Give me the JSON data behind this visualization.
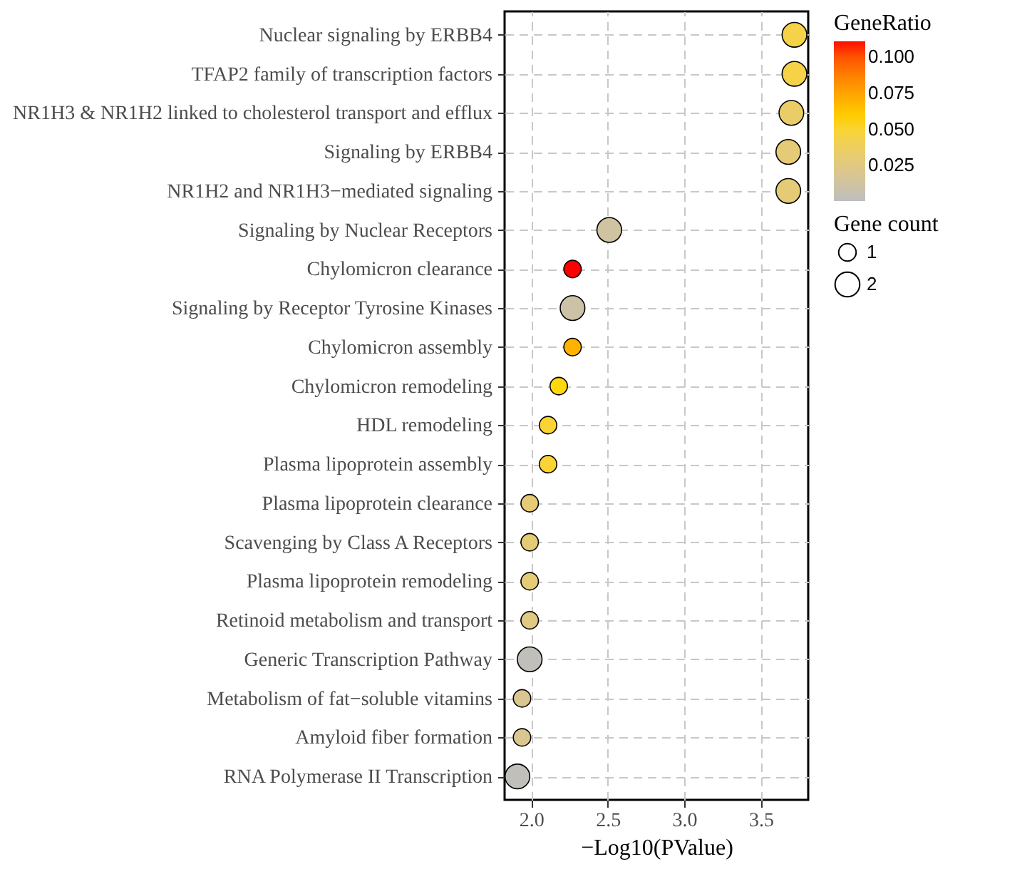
{
  "chart_data": {
    "type": "bubble",
    "orientation": "horizontal",
    "xlabel": "−Log10(PValue)",
    "grid": true,
    "categories": [
      "Nuclear signaling by ERBB4",
      "TFAP2 family of transcription factors",
      "NR1H3 & NR1H2 linked to cholesterol transport and efflux",
      "Signaling by ERBB4",
      "NR1H2 and NR1H3−mediated signaling",
      "Signaling by Nuclear Receptors",
      "Chylomicron clearance",
      "Signaling by Receptor Tyrosine Kinases",
      "Chylomicron assembly",
      "Chylomicron remodeling",
      "HDL remodeling",
      "Plasma lipoprotein assembly",
      "Plasma lipoprotein clearance",
      "Scavenging by Class A Receptors",
      "Plasma lipoprotein remodeling",
      "Retinoid metabolism and transport",
      "Generic Transcription Pathway",
      "Metabolism of fat−soluble vitamins",
      "Amyloid fiber formation",
      "RNA Polymerase II Transcription"
    ],
    "values": [
      3.72,
      3.72,
      3.7,
      3.68,
      3.68,
      2.51,
      2.27,
      2.27,
      2.27,
      2.18,
      2.11,
      2.11,
      1.99,
      1.99,
      1.99,
      1.99,
      1.99,
      1.94,
      1.94,
      1.91
    ],
    "sizes": [
      2,
      2,
      2,
      2,
      2,
      2,
      1,
      2,
      1,
      1,
      1,
      1,
      1,
      1,
      1,
      1,
      2,
      1,
      1,
      2
    ],
    "size_legend": [
      1,
      2
    ],
    "legend_title": "Gene count",
    "clabel": "GeneRatio",
    "cvalues": [
      0.045,
      0.045,
      0.035,
      0.03,
      0.03,
      0.012,
      0.111,
      0.01,
      0.07,
      0.055,
      0.05,
      0.05,
      0.03,
      0.03,
      0.03,
      0.025,
      0.002,
      0.02,
      0.02,
      0.002
    ],
    "clim": [
      0.0005,
      0.111
    ],
    "cticks": [
      {
        "value": 0.025,
        "label": "0.025"
      },
      {
        "value": 0.05,
        "label": "0.050"
      },
      {
        "value": 0.075,
        "label": "0.075"
      },
      {
        "value": 0.1,
        "label": "0.100"
      }
    ],
    "xlim": [
      1.826,
      3.81
    ],
    "xticks": [
      {
        "value": 2,
        "label": "2.0"
      },
      2.5,
      {
        "value": 3,
        "label": "3.0"
      },
      3.5
    ]
  }
}
